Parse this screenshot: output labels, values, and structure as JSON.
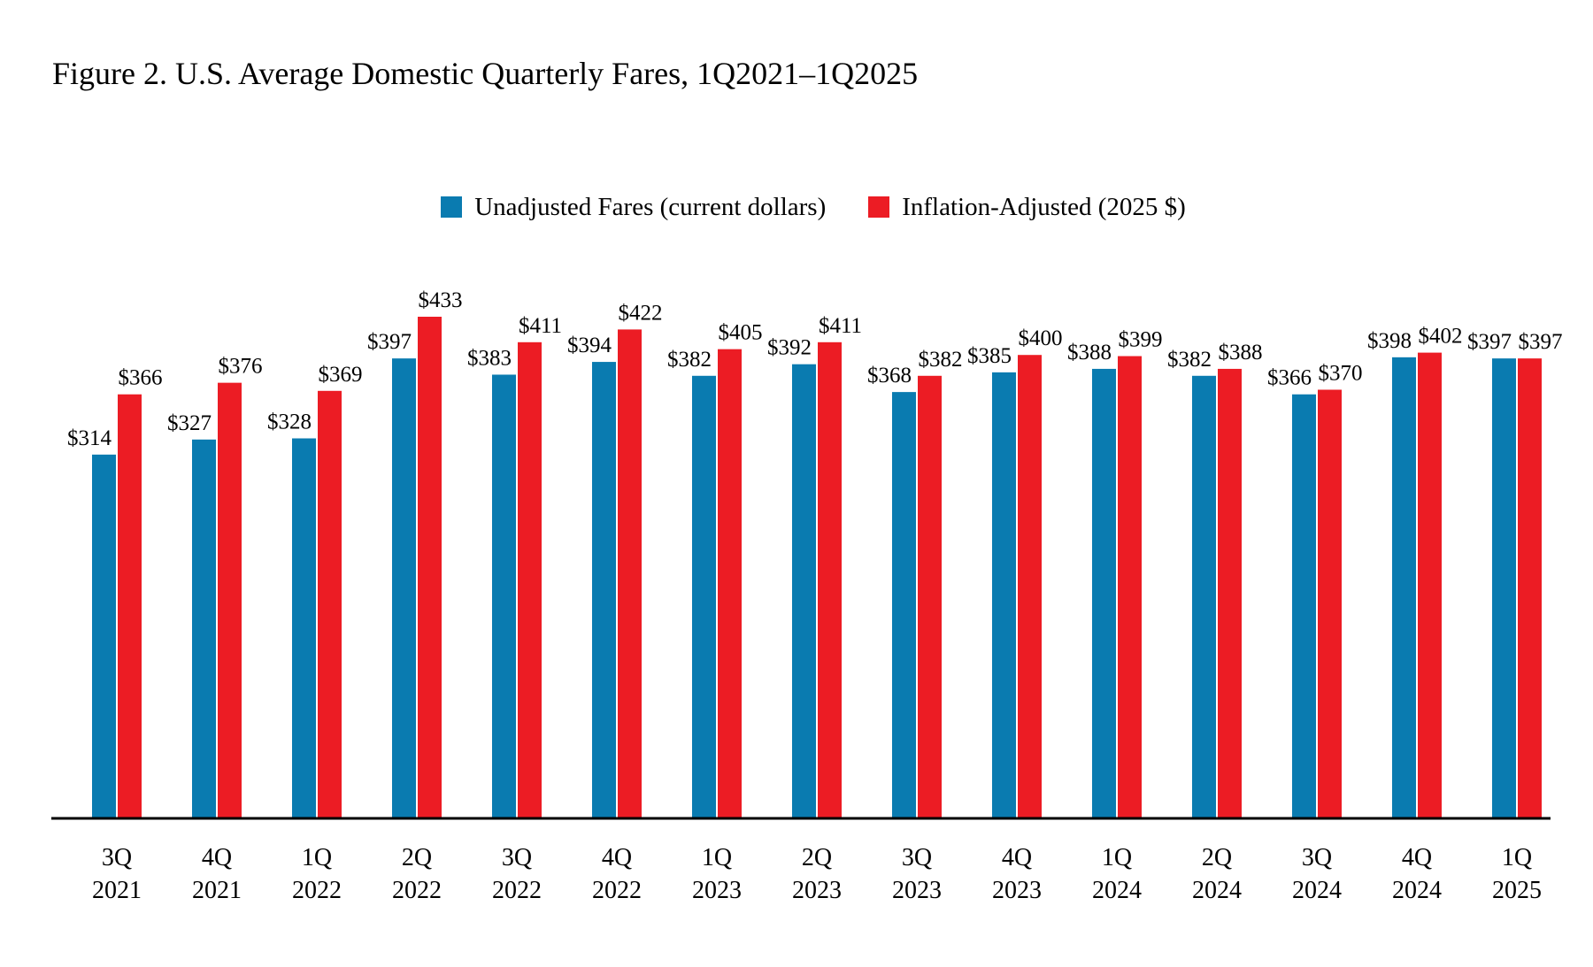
{
  "chart_data": {
    "type": "bar",
    "title": "Figure 2. U.S. Average Domestic Quarterly Fares, 1Q2021–1Q2025",
    "xlabel": "",
    "ylabel": "",
    "ylim": [
      0,
      433
    ],
    "grid": false,
    "legend_position": "top-center",
    "categories": [
      {
        "quarter": "3Q",
        "year": "2021"
      },
      {
        "quarter": "4Q",
        "year": "2021"
      },
      {
        "quarter": "1Q",
        "year": "2022"
      },
      {
        "quarter": "2Q",
        "year": "2022"
      },
      {
        "quarter": "3Q",
        "year": "2022"
      },
      {
        "quarter": "4Q",
        "year": "2022"
      },
      {
        "quarter": "1Q",
        "year": "2023"
      },
      {
        "quarter": "2Q",
        "year": "2023"
      },
      {
        "quarter": "3Q",
        "year": "2023"
      },
      {
        "quarter": "4Q",
        "year": "2023"
      },
      {
        "quarter": "1Q",
        "year": "2024"
      },
      {
        "quarter": "2Q",
        "year": "2024"
      },
      {
        "quarter": "3Q",
        "year": "2024"
      },
      {
        "quarter": "4Q",
        "year": "2024"
      },
      {
        "quarter": "1Q",
        "year": "2025"
      }
    ],
    "series": [
      {
        "name": "Unadjusted Fares (current dollars)",
        "color": "#0a7bb0",
        "values": [
          314,
          327,
          328,
          397,
          383,
          394,
          382,
          392,
          368,
          385,
          388,
          382,
          366,
          398,
          397
        ],
        "labels": [
          "$314",
          "$327",
          "$328",
          "$397",
          "$383",
          "$394",
          "$382",
          "$392",
          "$368",
          "$385",
          "$388",
          "$382",
          "$366",
          "$398",
          "$397"
        ]
      },
      {
        "name": "Inflation-Adjusted (2025 $)",
        "color": "#ec1c24",
        "values": [
          366,
          376,
          369,
          433,
          411,
          422,
          405,
          411,
          382,
          400,
          399,
          388,
          370,
          402,
          397
        ],
        "labels": [
          "$366",
          "$376",
          "$369",
          "$433",
          "$411",
          "$422",
          "$405",
          "$411",
          "$382",
          "$400",
          "$399",
          "$388",
          "$370",
          "$402",
          "$397"
        ]
      }
    ]
  }
}
